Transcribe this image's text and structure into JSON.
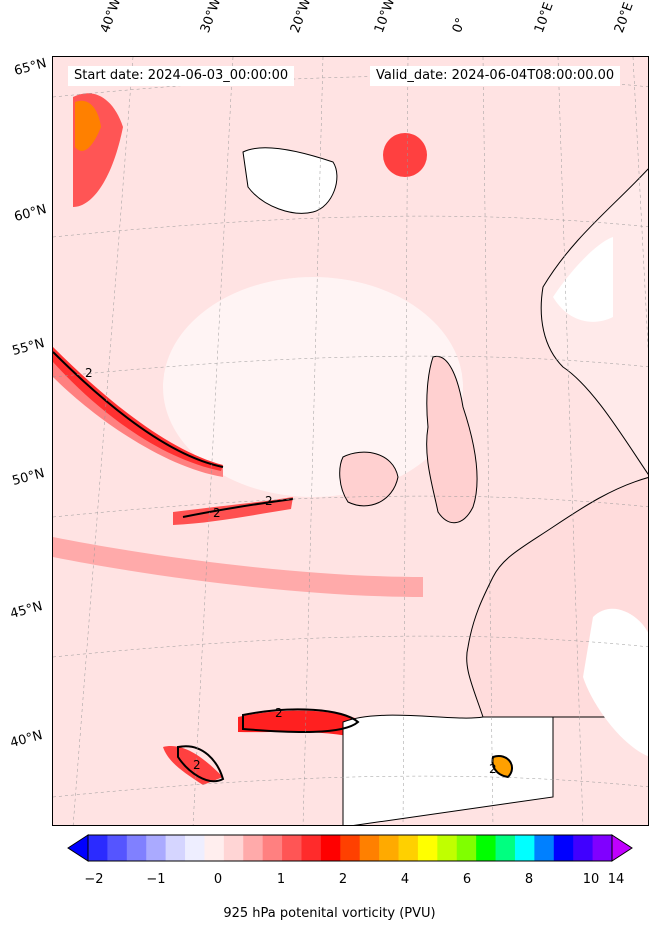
{
  "header": {
    "start_text": "Start date: 2024-06-03_00:00:00",
    "valid_text": "Valid_date: 2024-06-04T08:00:00.00"
  },
  "longitude_labels": [
    "40°W",
    "30°W",
    "20°W",
    "10°W",
    "0°",
    "10°E",
    "20°E"
  ],
  "latitude_labels": [
    "65°N",
    "60°N",
    "55°N",
    "50°N",
    "45°N",
    "40°N"
  ],
  "contour_label": "2",
  "colorbar": {
    "title": "925 hPa potenital vorticity (PVU)",
    "ticks": [
      "−2",
      "−1",
      "0",
      "1",
      "2",
      "4",
      "6",
      "8",
      "10",
      "14"
    ],
    "colors": [
      "#0000ff",
      "#2b2bff",
      "#5555ff",
      "#8080ff",
      "#aaaaff",
      "#d5d5ff",
      "#eeeeff",
      "#ffeeee",
      "#ffd5d5",
      "#ffaaaa",
      "#ff8080",
      "#ff5555",
      "#ff2b2b",
      "#ff0000",
      "#ff4000",
      "#ff8000",
      "#ffaa00",
      "#ffd000",
      "#ffff00",
      "#c0ff00",
      "#80ff00",
      "#00ff00",
      "#00ff80",
      "#00ffff",
      "#0080ff",
      "#0000ff",
      "#4000ff",
      "#8000ff",
      "#c000ff"
    ]
  }
}
